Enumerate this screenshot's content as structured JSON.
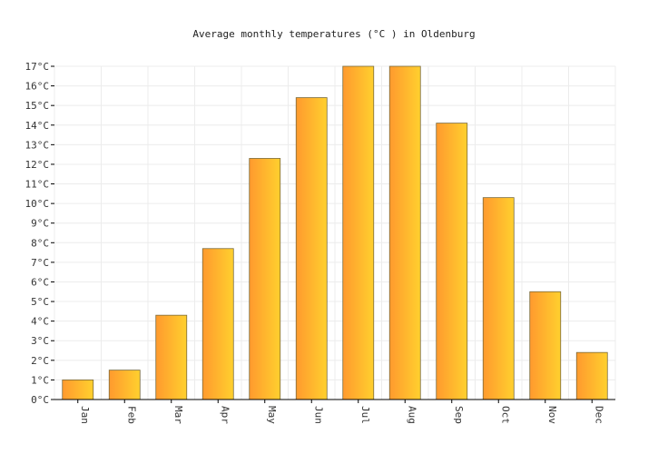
{
  "chart_data": {
    "type": "bar",
    "title": "Average monthly temperatures (°C ) in Oldenburg",
    "categories": [
      "Jan",
      "Feb",
      "Mar",
      "Apr",
      "May",
      "Jun",
      "Jul",
      "Aug",
      "Sep",
      "Oct",
      "Nov",
      "Dec"
    ],
    "values": [
      1.0,
      1.5,
      4.3,
      7.7,
      12.3,
      15.4,
      17.0,
      17.0,
      14.1,
      10.3,
      5.5,
      2.4
    ],
    "ylim": [
      0,
      17
    ],
    "yticks": [
      "0°C",
      "1°C",
      "2°C",
      "3°C",
      "4°C",
      "5°C",
      "6°C",
      "7°C",
      "8°C",
      "9°C",
      "10°C",
      "11°C",
      "12°C",
      "13°C",
      "14°C",
      "15°C",
      "16°C",
      "17°C"
    ],
    "grid": true,
    "colors": {
      "bar_start": "#ff9a2e",
      "bar_end": "#ffd02e"
    }
  }
}
